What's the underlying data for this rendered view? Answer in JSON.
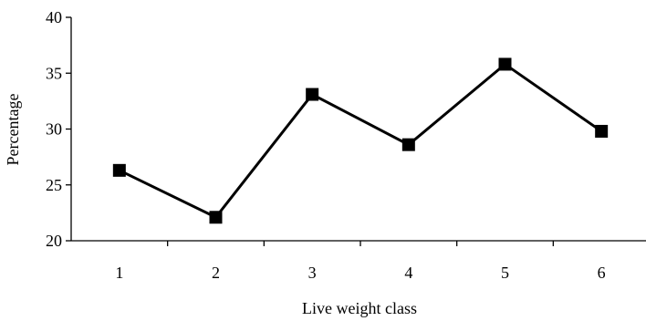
{
  "chart_data": {
    "type": "line",
    "title": "",
    "xlabel": "Live weight class",
    "ylabel": "Percentage",
    "categories": [
      "1",
      "2",
      "3",
      "4",
      "5",
      "6"
    ],
    "series": [
      {
        "values": [
          26.3,
          22.1,
          33.1,
          28.6,
          35.8,
          29.8
        ],
        "color": "#000000",
        "marker": "square"
      }
    ],
    "ylim": [
      20,
      40
    ],
    "yticks": [
      20,
      25,
      30,
      35,
      40
    ],
    "grid": false,
    "legend": "none"
  }
}
